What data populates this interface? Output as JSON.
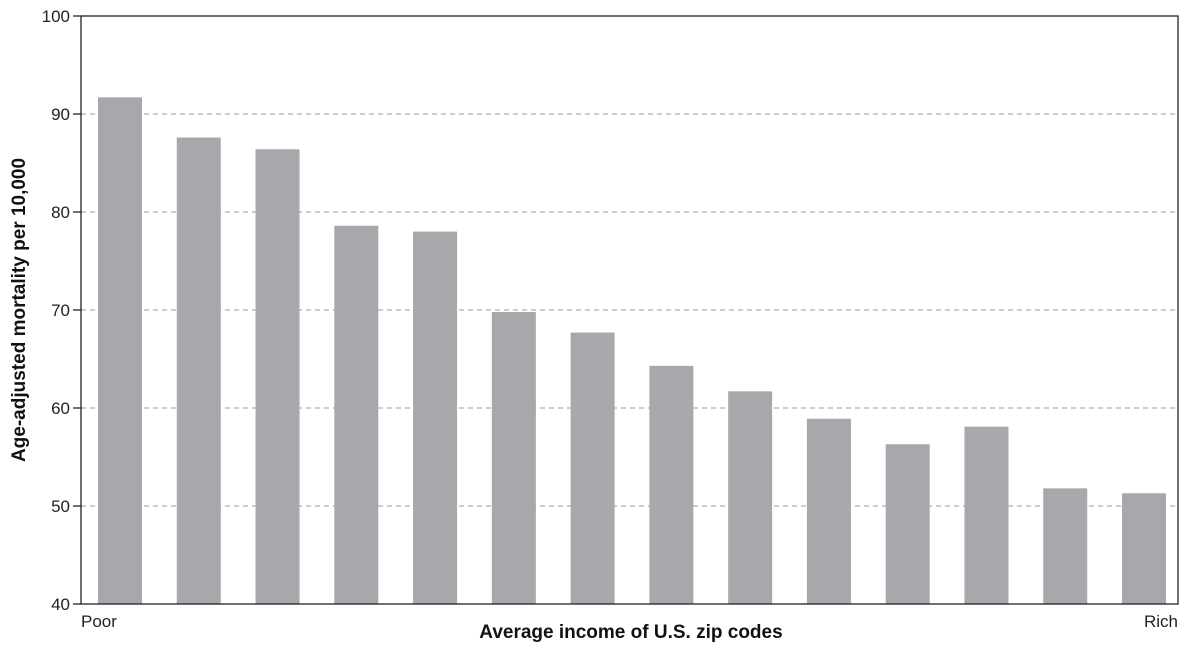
{
  "chart_data": {
    "type": "bar",
    "title": "",
    "xlabel": "Average income of U.S. zip codes",
    "ylabel": "Age-adjusted mortality per 10,000",
    "ylim": [
      40,
      100
    ],
    "yticks": [
      40,
      50,
      60,
      70,
      80,
      90,
      100
    ],
    "grid": true,
    "x_extreme_labels": {
      "left": "Poor",
      "right": "Rich"
    },
    "colors": {
      "bar": "#a7a8ab",
      "grid": "#9a9a9a",
      "axis": "#222222"
    },
    "values": [
      91.7,
      87.6,
      86.4,
      78.6,
      78.0,
      69.8,
      67.7,
      64.3,
      61.7,
      58.9,
      56.3,
      58.1,
      51.8,
      51.3
    ]
  }
}
